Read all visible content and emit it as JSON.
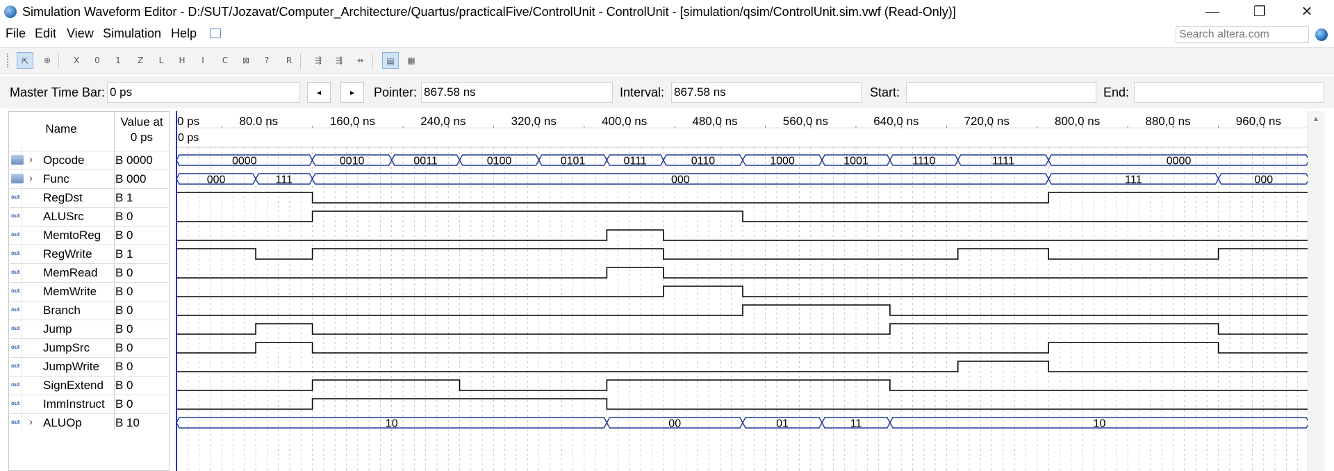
{
  "window": {
    "title": "Simulation Waveform Editor - D:/SUT/Jozavat/Computer_Architecture/Quartus/practicalFive/ControlUnit - ControlUnit - [simulation/qsim/ControlUnit.sim.vwf (Read-Only)]",
    "minimize": "—",
    "maximize": "❐",
    "close": "✕"
  },
  "menu": {
    "items": [
      "File",
      "Edit",
      "View",
      "Simulation",
      "Help"
    ],
    "search_placeholder": "Search altera.com"
  },
  "toolbar": {
    "icons": [
      "pointer-tool-icon",
      "zoom-tool-icon",
      "forcing-unknown-icon",
      "forcing-low-icon",
      "forcing-high-icon",
      "high-impedance-icon",
      "weak-low-icon",
      "weak-high-icon",
      "invert-icon",
      "count-value-icon",
      "overwrite-clock-icon",
      "random-values-icon",
      "dont-care-icon",
      "snap-to-grid-icon",
      "snap-to-transitions-icon",
      "snap-value-icon",
      "grid-settings-icon",
      "group-settings-icon"
    ],
    "glyphs": [
      "⇱",
      "⊕",
      "X",
      "0",
      "1",
      "Z",
      "L",
      "H",
      "I",
      "C",
      "⊠",
      "?",
      "R",
      "⇶",
      "⇶",
      "⇸",
      "▤",
      "▦"
    ]
  },
  "timebar": {
    "master_label": "Master Time Bar:",
    "master_value": "0 ps",
    "prev_label": "◂",
    "next_label": "▸",
    "pointer_label": "Pointer:",
    "pointer_value": "867.58 ns",
    "interval_label": "Interval:",
    "interval_value": "867.58 ns",
    "start_label": "Start:",
    "start_value": "",
    "end_label": "End:",
    "end_value": ""
  },
  "grid": {
    "name_header": "Name",
    "value_header_line1": "Value at",
    "value_header_line2": "0 ps",
    "time_cursor_label": "0 ps",
    "time_ticks": [
      "0 ps",
      "80.0 ns",
      "160,0 ns",
      "240,0 ns",
      "320,0 ns",
      "400,0 ns",
      "480,0 ns",
      "560,0 ns",
      "640,0 ns",
      "720,0 ns",
      "800,0 ns",
      "880,0 ns",
      "960,0 ns"
    ],
    "time_tick_ns": [
      0,
      80,
      160,
      240,
      320,
      400,
      480,
      560,
      640,
      720,
      800,
      880,
      960
    ],
    "time_range_ns": [
      0,
      1000
    ]
  },
  "signals": [
    {
      "name": "Opcode",
      "value": "B 0000",
      "kind": "bus",
      "io": "in",
      "segments": [
        [
          0,
          120,
          "0000"
        ],
        [
          120,
          190,
          "0010"
        ],
        [
          190,
          250,
          "0011"
        ],
        [
          250,
          320,
          "0100"
        ],
        [
          320,
          380,
          "0101"
        ],
        [
          380,
          430,
          "0111"
        ],
        [
          430,
          500,
          "0110"
        ],
        [
          500,
          570,
          "1000"
        ],
        [
          570,
          630,
          "1001"
        ],
        [
          630,
          690,
          "1110"
        ],
        [
          690,
          770,
          "1111"
        ],
        [
          770,
          1000,
          "0000"
        ]
      ]
    },
    {
      "name": "Func",
      "value": "B 000",
      "kind": "bus",
      "io": "in",
      "segments": [
        [
          0,
          70,
          "000"
        ],
        [
          70,
          120,
          "111"
        ],
        [
          120,
          770,
          "000"
        ],
        [
          770,
          920,
          "111"
        ],
        [
          920,
          1000,
          "000"
        ]
      ]
    },
    {
      "name": "RegDst",
      "value": "B 1",
      "kind": "bit",
      "io": "out",
      "init": 1,
      "transitions": [
        120,
        770
      ]
    },
    {
      "name": "ALUSrc",
      "value": "B 0",
      "kind": "bit",
      "io": "out",
      "init": 0,
      "transitions": [
        120,
        500
      ]
    },
    {
      "name": "MemtoReg",
      "value": "B 0",
      "kind": "bit",
      "io": "out",
      "init": 0,
      "transitions": [
        380,
        430
      ]
    },
    {
      "name": "RegWrite",
      "value": "B 1",
      "kind": "bit",
      "io": "out",
      "init": 1,
      "transitions": [
        70,
        120,
        430,
        690,
        770,
        920
      ]
    },
    {
      "name": "MemRead",
      "value": "B 0",
      "kind": "bit",
      "io": "out",
      "init": 0,
      "transitions": [
        380,
        430
      ]
    },
    {
      "name": "MemWrite",
      "value": "B 0",
      "kind": "bit",
      "io": "out",
      "init": 0,
      "transitions": [
        430,
        500
      ]
    },
    {
      "name": "Branch",
      "value": "B 0",
      "kind": "bit",
      "io": "out",
      "init": 0,
      "transitions": [
        500,
        630
      ]
    },
    {
      "name": "Jump",
      "value": "B 0",
      "kind": "bit",
      "io": "out",
      "init": 0,
      "transitions": [
        70,
        120,
        630,
        920
      ]
    },
    {
      "name": "JumpSrc",
      "value": "B 0",
      "kind": "bit",
      "io": "out",
      "init": 0,
      "transitions": [
        70,
        120,
        770,
        920
      ]
    },
    {
      "name": "JumpWrite",
      "value": "B 0",
      "kind": "bit",
      "io": "out",
      "init": 0,
      "transitions": [
        690,
        770
      ]
    },
    {
      "name": "SignExtend",
      "value": "B 0",
      "kind": "bit",
      "io": "out",
      "init": 0,
      "transitions": [
        120,
        250,
        380,
        630
      ]
    },
    {
      "name": "ImmInstruct",
      "value": "B 0",
      "kind": "bit",
      "io": "out",
      "init": 0,
      "transitions": [
        120,
        380
      ]
    },
    {
      "name": "ALUOp",
      "value": "B 10",
      "kind": "bus",
      "io": "out",
      "segments": [
        [
          0,
          380,
          "10"
        ],
        [
          380,
          500,
          "00"
        ],
        [
          500,
          570,
          "01"
        ],
        [
          570,
          630,
          "11"
        ],
        [
          630,
          1000,
          "10"
        ]
      ]
    }
  ],
  "colors": {
    "bus": "#1f3a9a",
    "bit": "#000000",
    "grid": "#b9b9b9",
    "cursor": "#2a2ad0"
  }
}
